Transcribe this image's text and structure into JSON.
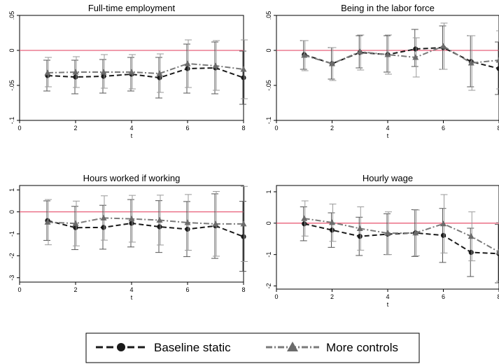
{
  "colors": {
    "background": "#ffffff",
    "plot_border": "#000000",
    "zero_line": "#e8607a",
    "baseline_series": "#1a1a1a",
    "controls_series": "#7a7a7a",
    "ci_baseline": "#555555",
    "ci_controls": "#9a9a9a"
  },
  "legend": {
    "items": [
      {
        "label": "Baseline static",
        "marker": "circle",
        "line": "dash"
      },
      {
        "label": "More controls",
        "marker": "triangle",
        "line": "dashdot"
      }
    ]
  },
  "chart_data": [
    {
      "type": "line",
      "title": "Full-time employment",
      "xlabel": "t",
      "ylabel": "",
      "xlim": [
        0,
        8
      ],
      "ylim": [
        -0.1,
        0.05
      ],
      "xticks": [
        0,
        2,
        4,
        6,
        8
      ],
      "yticks": [
        0.05,
        0,
        -0.05,
        -0.1
      ],
      "ytick_labels": [
        ".05",
        "0",
        "-.05",
        "-.1"
      ],
      "reference_line": 0,
      "x": [
        1,
        2,
        3,
        4,
        5,
        6,
        7,
        8
      ],
      "series": [
        {
          "legend_item": 0,
          "values": [
            -0.036,
            -0.038,
            -0.037,
            -0.034,
            -0.039,
            -0.026,
            -0.025,
            -0.039
          ],
          "ci_low": [
            -0.058,
            -0.062,
            -0.061,
            -0.058,
            -0.068,
            -0.061,
            -0.062,
            -0.077
          ],
          "ci_high": [
            -0.014,
            -0.014,
            -0.013,
            -0.01,
            -0.01,
            0.009,
            0.012,
            -0.001
          ]
        },
        {
          "legend_item": 1,
          "values": [
            -0.032,
            -0.031,
            -0.031,
            -0.031,
            -0.033,
            -0.019,
            -0.022,
            -0.027
          ],
          "ci_low": [
            -0.052,
            -0.053,
            -0.054,
            -0.055,
            -0.06,
            -0.053,
            -0.057,
            -0.069
          ],
          "ci_high": [
            -0.01,
            -0.009,
            -0.006,
            -0.006,
            -0.005,
            0.015,
            0.014,
            0.015
          ]
        }
      ]
    },
    {
      "type": "line",
      "title": "Being in the labor force",
      "xlabel": "t",
      "ylabel": "",
      "xlim": [
        0,
        8
      ],
      "ylim": [
        -0.1,
        0.05
      ],
      "xticks": [
        0,
        2,
        4,
        6,
        8
      ],
      "yticks": [
        0.05,
        0,
        -0.05,
        -0.1
      ],
      "ytick_labels": [
        ".05",
        "0",
        "-.05",
        "-.1"
      ],
      "reference_line": 0,
      "x": [
        1,
        2,
        3,
        4,
        5,
        6,
        7,
        8
      ],
      "series": [
        {
          "legend_item": 0,
          "values": [
            -0.006,
            -0.019,
            -0.003,
            -0.006,
            0.002,
            0.004,
            -0.016,
            -0.026
          ],
          "ci_low": [
            -0.027,
            -0.041,
            -0.025,
            -0.031,
            -0.023,
            -0.027,
            -0.052,
            -0.063
          ],
          "ci_high": [
            0.014,
            0.004,
            0.021,
            0.021,
            0.03,
            0.035,
            0.021,
            0.012
          ]
        },
        {
          "legend_item": 1,
          "values": [
            -0.007,
            -0.019,
            -0.002,
            -0.006,
            -0.01,
            0.006,
            -0.018,
            -0.014
          ],
          "ci_low": [
            -0.029,
            -0.043,
            -0.028,
            -0.034,
            -0.038,
            -0.027,
            -0.057,
            -0.055
          ],
          "ci_high": [
            0.014,
            0.004,
            0.022,
            0.022,
            0.018,
            0.039,
            0.021,
            0.028
          ]
        }
      ]
    },
    {
      "type": "line",
      "title": "Hours worked if working",
      "xlabel": "t",
      "ylabel": "",
      "xlim": [
        0,
        8
      ],
      "ylim": [
        -3.2,
        1.2
      ],
      "xticks": [
        0,
        2,
        4,
        6,
        8
      ],
      "yticks": [
        1,
        0,
        -1,
        -2,
        -3
      ],
      "ytick_labels": [
        "1",
        "0",
        "-1",
        "-2",
        "-3"
      ],
      "reference_line": 0,
      "x": [
        1,
        2,
        3,
        4,
        5,
        6,
        7,
        8
      ],
      "series": [
        {
          "legend_item": 0,
          "values": [
            -0.4,
            -0.72,
            -0.71,
            -0.52,
            -0.68,
            -0.79,
            -0.64,
            -1.13
          ],
          "ci_low": [
            -1.3,
            -1.72,
            -1.7,
            -1.6,
            -1.85,
            -2.04,
            -2.12,
            -2.71
          ],
          "ci_high": [
            0.5,
            0.25,
            0.3,
            0.56,
            0.51,
            0.47,
            0.82,
            0.48
          ]
        },
        {
          "legend_item": 1,
          "values": [
            -0.47,
            -0.53,
            -0.28,
            -0.32,
            -0.38,
            -0.49,
            -0.55,
            -0.55
          ],
          "ci_low": [
            -1.5,
            -1.55,
            -1.29,
            -1.38,
            -1.51,
            -1.75,
            -2.02,
            -2.26
          ],
          "ci_high": [
            0.56,
            0.49,
            0.73,
            0.75,
            0.76,
            0.79,
            0.93,
            1.16
          ]
        }
      ]
    },
    {
      "type": "line",
      "title": "Hourly wage",
      "xlabel": "t",
      "ylabel": "",
      "xlim": [
        0,
        8
      ],
      "ylim": [
        -2.1,
        1.2
      ],
      "xticks": [
        0,
        2,
        4,
        6,
        8
      ],
      "yticks": [
        1,
        0,
        -1,
        -2
      ],
      "ytick_labels": [
        "1",
        "0",
        "-1",
        "-2"
      ],
      "reference_line": 0,
      "x": [
        1,
        2,
        3,
        4,
        5,
        6,
        7,
        8
      ],
      "series": [
        {
          "legend_item": 0,
          "values": [
            -0.02,
            -0.22,
            -0.42,
            -0.35,
            -0.31,
            -0.39,
            -0.93,
            -0.97
          ],
          "ci_low": [
            -0.56,
            -0.77,
            -1.03,
            -1.0,
            -1.06,
            -1.25,
            -1.7,
            -1.9
          ],
          "ci_high": [
            0.52,
            0.33,
            0.19,
            0.3,
            0.43,
            0.47,
            -0.16,
            -0.04
          ]
        },
        {
          "legend_item": 1,
          "values": [
            0.15,
            0.02,
            -0.17,
            -0.32,
            -0.31,
            -0.02,
            -0.42,
            -0.92
          ],
          "ci_low": [
            -0.41,
            -0.58,
            -0.86,
            -1.0,
            -1.04,
            -0.95,
            -1.2,
            -1.85
          ],
          "ci_high": [
            0.71,
            0.61,
            0.52,
            0.36,
            0.42,
            0.91,
            0.36,
            0.02
          ]
        }
      ]
    }
  ]
}
